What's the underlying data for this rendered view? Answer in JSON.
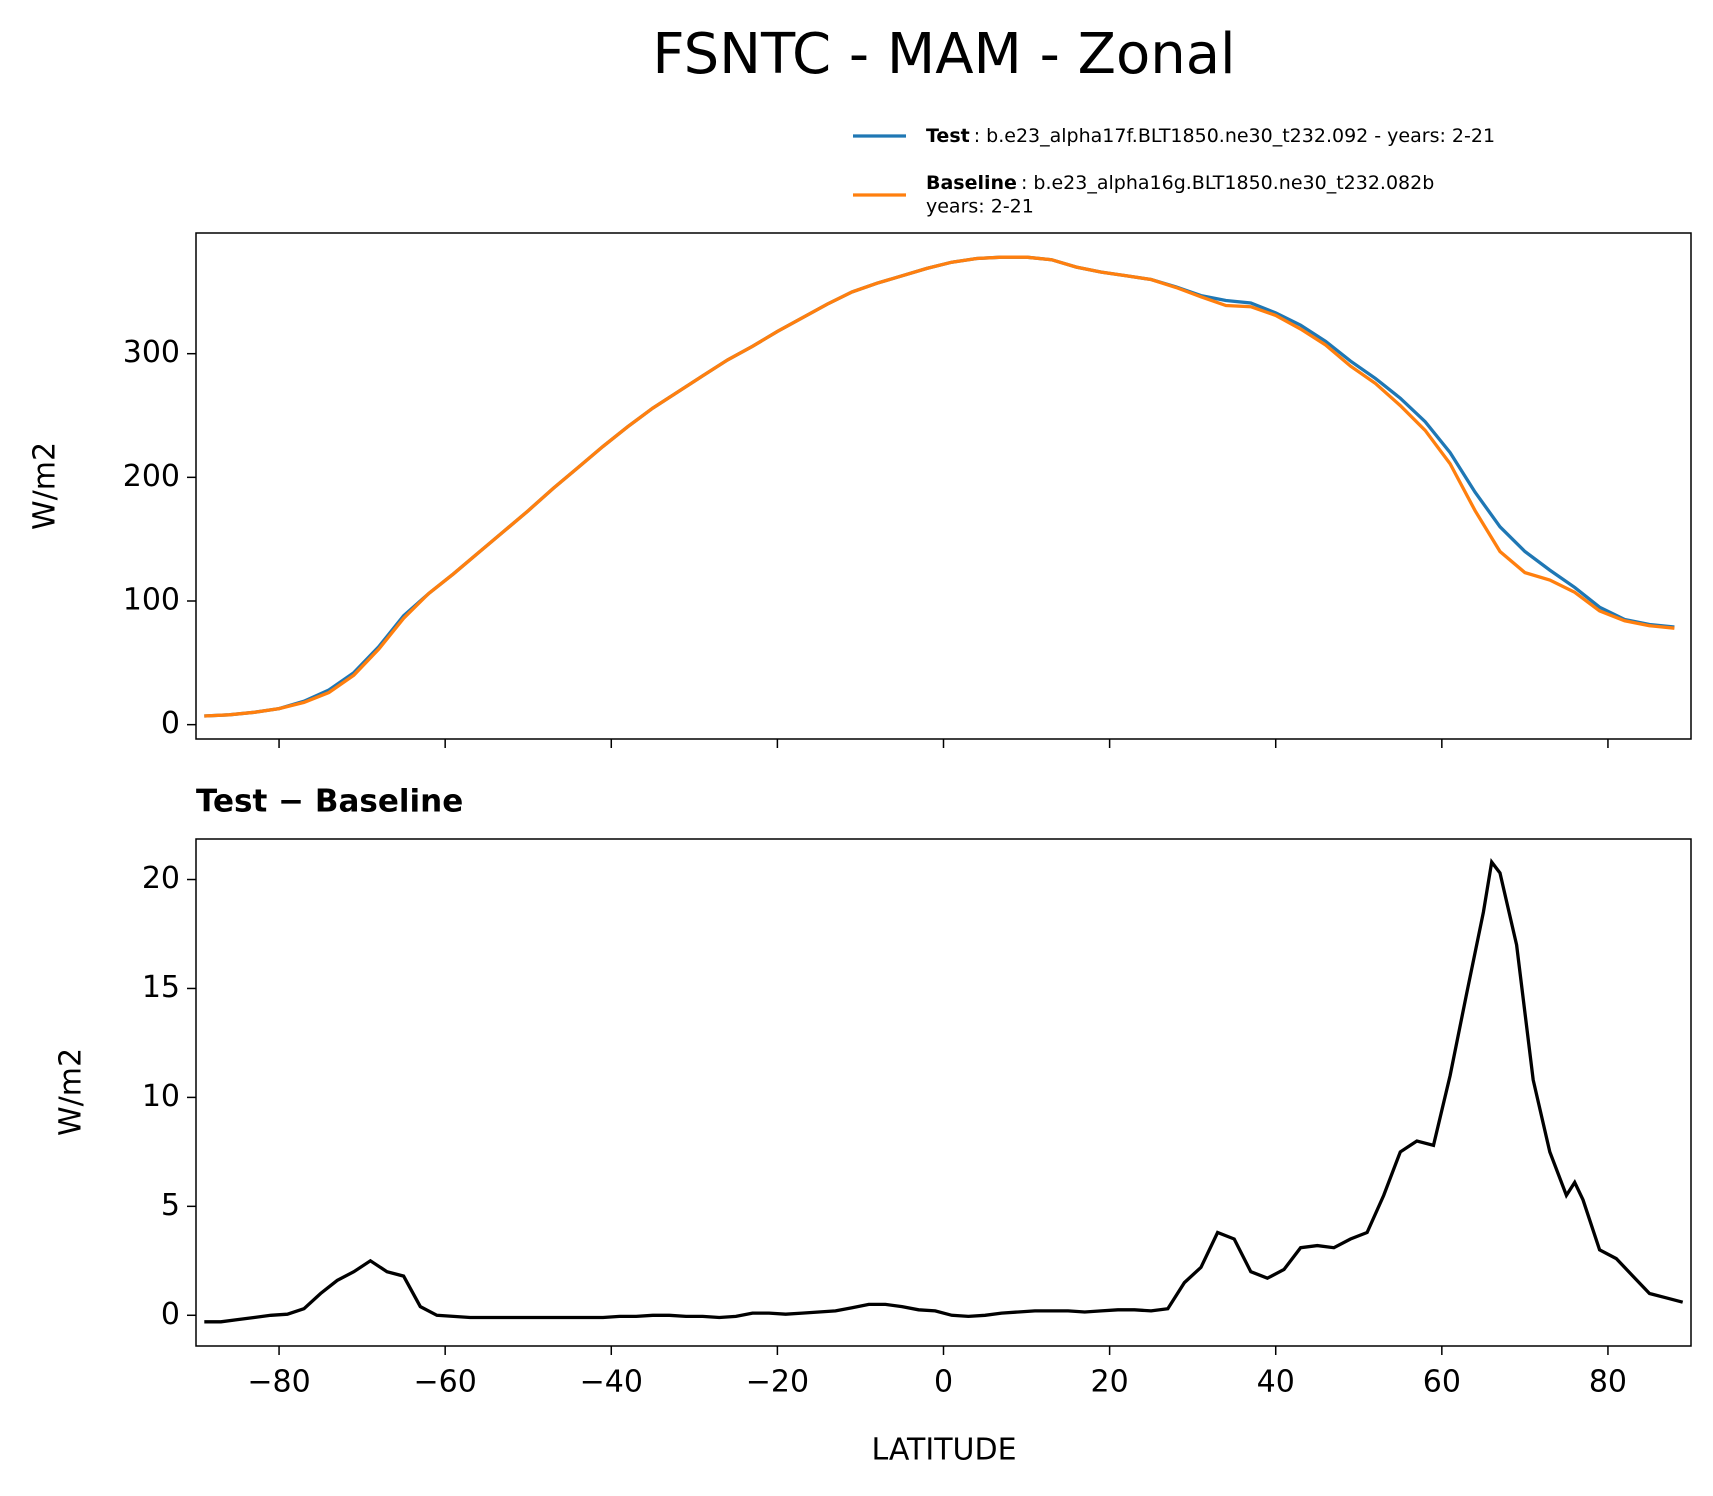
{
  "chart_data": [
    {
      "type": "line",
      "title": "FSNTC - MAM - Zonal",
      "ylabel": "W/m2",
      "x": [
        -89,
        -86,
        -83,
        -80,
        -77,
        -74,
        -71,
        -68,
        -65,
        -62,
        -59,
        -56,
        -53,
        -50,
        -47,
        -44,
        -41,
        -38,
        -35,
        -32,
        -29,
        -26,
        -23,
        -20,
        -17,
        -14,
        -11,
        -8,
        -5,
        -2,
        1,
        4,
        7,
        10,
        13,
        16,
        19,
        22,
        25,
        28,
        31,
        34,
        37,
        40,
        43,
        46,
        49,
        52,
        55,
        58,
        61,
        64,
        67,
        70,
        73,
        76,
        79,
        82,
        85,
        88
      ],
      "series": [
        {
          "name": "Test",
          "description": ": b.e23_alpha17f.BLT1850.ne30_t232.092 - years: 2-21",
          "color": "#1f77b4",
          "values": [
            7,
            8,
            10,
            13,
            19,
            28,
            42,
            63,
            88,
            106,
            122,
            139,
            156,
            173,
            191,
            208,
            225,
            241,
            256,
            269,
            282,
            295,
            306,
            318,
            329,
            340,
            350,
            357,
            363,
            369,
            374,
            377,
            378,
            378,
            376,
            370,
            366,
            363,
            360,
            354,
            347,
            343,
            341,
            333,
            323,
            310,
            294,
            280,
            264,
            245,
            220,
            188,
            160,
            140,
            125,
            111,
            95,
            85,
            81,
            79
          ]
        },
        {
          "name": "Baseline",
          "description": [
            ": b.e23_alpha16g.BLT1850.ne30_t232.082b",
            "years: 2-21"
          ],
          "color": "#ff7f0e",
          "values": [
            7,
            8,
            10,
            13,
            18,
            26,
            40,
            61,
            86,
            106,
            122,
            139,
            156,
            173,
            191,
            208,
            225,
            241,
            256,
            269,
            282,
            295,
            306,
            318,
            329,
            340,
            350,
            357,
            363,
            369,
            374,
            377,
            378,
            378,
            376,
            370,
            366,
            363,
            360,
            353.5,
            346,
            339,
            338,
            331,
            320,
            307,
            290,
            276,
            258,
            238,
            211,
            173,
            140,
            123,
            117,
            107,
            92,
            84,
            80,
            78
          ]
        }
      ],
      "xlim": [
        -90,
        90
      ],
      "xticks": [
        -80,
        -60,
        -40,
        -20,
        0,
        20,
        40,
        60,
        80
      ],
      "ylim": [
        -11.6,
        397.6
      ],
      "yticks": [
        0,
        100,
        200,
        300
      ]
    },
    {
      "type": "line",
      "title": "Test − Baseline",
      "ylabel": "W/m2",
      "xlabel": "LATITUDE",
      "x": [
        -89,
        -87,
        -85,
        -83,
        -81,
        -79,
        -77,
        -75,
        -73,
        -71,
        -69,
        -67,
        -65,
        -63,
        -61,
        -59,
        -57,
        -55,
        -53,
        -51,
        -49,
        -47,
        -45,
        -43,
        -41,
        -39,
        -37,
        -35,
        -33,
        -31,
        -29,
        -27,
        -25,
        -23,
        -21,
        -19,
        -17,
        -15,
        -13,
        -11,
        -9,
        -7,
        -5,
        -3,
        -1,
        1,
        3,
        5,
        7,
        9,
        11,
        13,
        15,
        17,
        19,
        21,
        23,
        25,
        27,
        29,
        31,
        33,
        35,
        37,
        39,
        41,
        43,
        45,
        47,
        49,
        51,
        53,
        55,
        57,
        59,
        61,
        63,
        65,
        66,
        67,
        69,
        71,
        73,
        75,
        76,
        77,
        79,
        81,
        83,
        85,
        87,
        89
      ],
      "series": [
        {
          "color": "#000000",
          "values": [
            -0.3,
            -0.3,
            -0.2,
            -0.1,
            0,
            0.05,
            0.3,
            1.0,
            1.6,
            2.0,
            2.5,
            2.0,
            1.8,
            0.4,
            0,
            -0.05,
            -0.1,
            -0.1,
            -0.1,
            -0.1,
            -0.1,
            -0.1,
            -0.1,
            -0.1,
            -0.1,
            -0.05,
            -0.05,
            0,
            0,
            -0.05,
            -0.05,
            -0.1,
            -0.05,
            0.1,
            0.1,
            0.05,
            0.1,
            0.15,
            0.2,
            0.35,
            0.5,
            0.5,
            0.4,
            0.25,
            0.2,
            0,
            -0.05,
            0,
            0.1,
            0.15,
            0.2,
            0.2,
            0.2,
            0.15,
            0.2,
            0.25,
            0.25,
            0.2,
            0.3,
            1.5,
            2.2,
            3.8,
            3.5,
            2.0,
            1.7,
            2.1,
            3.1,
            3.2,
            3.1,
            3.5,
            3.8,
            5.5,
            7.5,
            8.0,
            7.8,
            11.0,
            14.8,
            18.5,
            20.8,
            20.3,
            17.0,
            10.8,
            7.5,
            5.5,
            6.1,
            5.3,
            3.0,
            2.6,
            1.8,
            1.0,
            0.8,
            0.6
          ]
        }
      ],
      "xlim": [
        -90,
        90
      ],
      "xticks": [
        {
          "value": -80,
          "label": "−80"
        },
        {
          "value": -60,
          "label": "−60"
        },
        {
          "value": -40,
          "label": "−40"
        },
        {
          "value": -20,
          "label": "−20"
        },
        0,
        20,
        40,
        60,
        80
      ],
      "ylim": [
        -1.41,
        21.86
      ],
      "yticks": [
        0,
        5,
        10,
        15,
        20
      ]
    }
  ]
}
